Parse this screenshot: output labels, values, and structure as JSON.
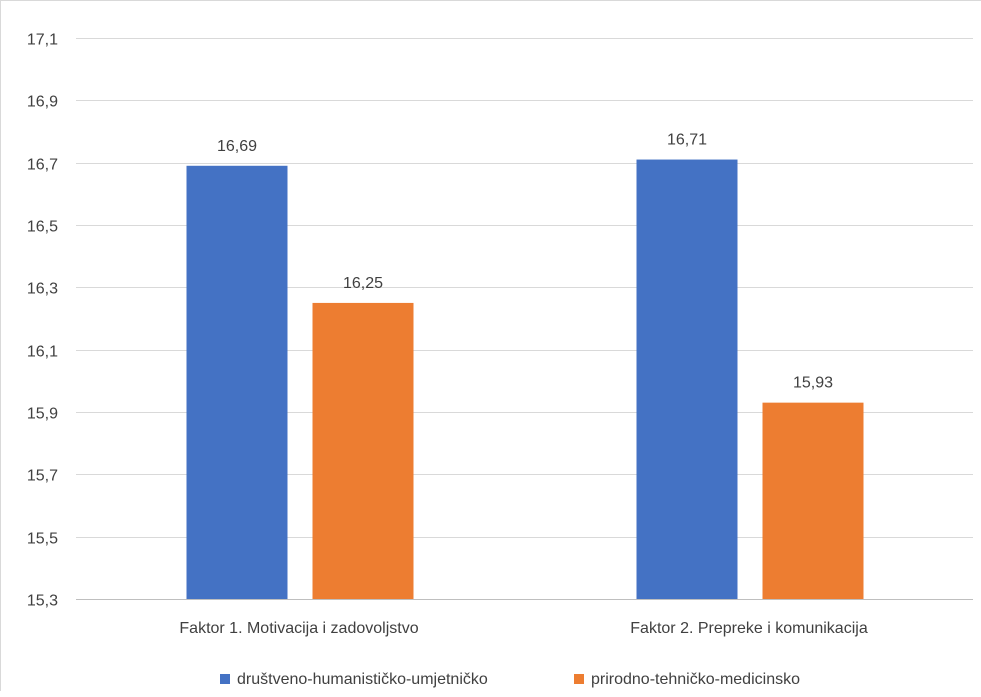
{
  "chart_data": {
    "type": "bar",
    "title": "",
    "xlabel": "",
    "ylabel": "",
    "categories": [
      "Faktor 1. Motivacija i zadovoljstvo",
      "Faktor 2. Prepreke i komunikacija"
    ],
    "series": [
      {
        "name": "društveno-humanističko-umjetničko",
        "color": "#4472C4",
        "values": [
          16.69,
          16.71
        ],
        "labels": [
          "16,69",
          "16,71"
        ]
      },
      {
        "name": "prirodno-tehničko-medicinsko",
        "color": "#ED7D31",
        "values": [
          16.25,
          15.93
        ],
        "labels": [
          "16,25",
          "15,93"
        ]
      }
    ],
    "ylim": [
      15.3,
      17.1
    ],
    "yticks": [
      15.3,
      15.5,
      15.7,
      15.9,
      16.1,
      16.3,
      16.5,
      16.7,
      16.9,
      17.1
    ],
    "ytick_labels": [
      "15,3",
      "15,5",
      "15,7",
      "15,9",
      "16,1",
      "16,3",
      "16,5",
      "16,7",
      "16,9",
      "17,1"
    ],
    "grid": true,
    "legend": "bottom"
  }
}
